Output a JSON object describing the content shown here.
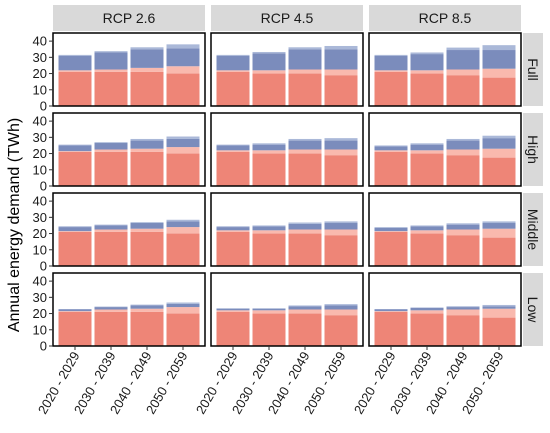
{
  "chart_data": {
    "type": "bar",
    "stacked": true,
    "ylabel": "Annual energy demand (TWh)",
    "ylim": [
      0,
      45
    ],
    "yticks": [
      0,
      10,
      20,
      30,
      40
    ],
    "categories": [
      "2020 - 2029",
      "2030 - 2039",
      "2040 - 2049",
      "2050 - 2059"
    ],
    "columns": [
      "RCP 2.6",
      "RCP 4.5",
      "RCP 8.5"
    ],
    "rows": [
      "Full",
      "High",
      "Middle",
      "Low"
    ],
    "grid": false,
    "legend": "none",
    "stack_colors": [
      "#ee8577",
      "#f9b9ae",
      "#7b8cbc",
      "#aab8d8"
    ],
    "panels": [
      {
        "column": "RCP 2.6",
        "row": "Full",
        "stacks": [
          [
            21,
            1,
            9,
            0.5
          ],
          [
            21,
            1.5,
            10.5,
            0.8
          ],
          [
            21,
            2.5,
            11.5,
            1.2
          ],
          [
            20,
            4.5,
            11,
            2.5
          ]
        ]
      },
      {
        "column": "RCP 4.5",
        "row": "Full",
        "stacks": [
          [
            21,
            1,
            9,
            0.5
          ],
          [
            20,
            2,
            10.5,
            0.8
          ],
          [
            20,
            2.5,
            12.5,
            1.2
          ],
          [
            19,
            3.5,
            12.5,
            2
          ]
        ]
      },
      {
        "column": "RCP 8.5",
        "row": "Full",
        "stacks": [
          [
            21,
            1,
            9,
            0.5
          ],
          [
            20,
            2,
            10,
            1
          ],
          [
            19,
            3.5,
            12,
            1.5
          ],
          [
            17.5,
            5.5,
            11.5,
            3
          ]
        ]
      },
      {
        "column": "RCP 2.6",
        "row": "High",
        "stacks": [
          [
            21,
            0.5,
            3.5,
            0.5
          ],
          [
            21,
            1.5,
            4,
            0.5
          ],
          [
            21,
            2,
            5,
            1
          ],
          [
            20,
            4,
            5,
            1.5
          ]
        ]
      },
      {
        "column": "RCP 4.5",
        "row": "High",
        "stacks": [
          [
            21,
            1,
            3,
            0.5
          ],
          [
            20,
            2,
            3.5,
            0.8
          ],
          [
            20,
            2.5,
            5.5,
            1
          ],
          [
            19,
            3.5,
            5.5,
            1.5
          ]
        ]
      },
      {
        "column": "RCP 8.5",
        "row": "High",
        "stacks": [
          [
            21,
            1,
            2.5,
            0.5
          ],
          [
            20,
            2,
            3.5,
            0.8
          ],
          [
            19,
            3.5,
            5.5,
            1
          ],
          [
            17.5,
            5.5,
            6.5,
            1.5
          ]
        ]
      },
      {
        "column": "RCP 2.6",
        "row": "Middle",
        "stacks": [
          [
            21,
            0.5,
            2.5,
            0.5
          ],
          [
            21,
            1.5,
            2.5,
            0.5
          ],
          [
            21,
            2,
            3.5,
            0.5
          ],
          [
            20,
            4,
            3.5,
            1
          ]
        ]
      },
      {
        "column": "RCP 4.5",
        "row": "Middle",
        "stacks": [
          [
            21,
            1,
            2,
            0.5
          ],
          [
            20,
            2,
            2.5,
            0.5
          ],
          [
            20,
            2.5,
            3.5,
            0.8
          ],
          [
            19,
            3.5,
            4,
            1
          ]
        ]
      },
      {
        "column": "RCP 8.5",
        "row": "Middle",
        "stacks": [
          [
            21,
            0.5,
            2,
            0.5
          ],
          [
            20,
            2,
            2.5,
            0.5
          ],
          [
            19,
            3.5,
            3,
            0.8
          ],
          [
            17.5,
            5.5,
            3.5,
            1
          ]
        ]
      },
      {
        "column": "RCP 2.6",
        "row": "Low",
        "stacks": [
          [
            21,
            0.5,
            1,
            0.3
          ],
          [
            21,
            1.5,
            1.5,
            0.3
          ],
          [
            21,
            2,
            2,
            0.5
          ],
          [
            20,
            4,
            2,
            0.8
          ]
        ]
      },
      {
        "column": "RCP 4.5",
        "row": "Low",
        "stacks": [
          [
            21,
            1,
            1,
            0.3
          ],
          [
            20,
            2,
            1,
            0.3
          ],
          [
            20,
            2.5,
            2,
            0.5
          ],
          [
            19,
            3.5,
            2.5,
            0.8
          ]
        ]
      },
      {
        "column": "RCP 8.5",
        "row": "Low",
        "stacks": [
          [
            21,
            0.5,
            1,
            0.3
          ],
          [
            20,
            2,
            1.5,
            0.3
          ],
          [
            19,
            3.5,
            1.5,
            0.5
          ],
          [
            17.5,
            5.5,
            1.5,
            0.8
          ]
        ]
      }
    ]
  }
}
